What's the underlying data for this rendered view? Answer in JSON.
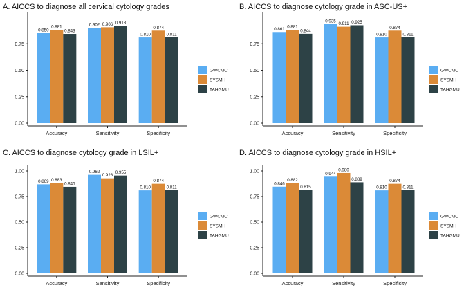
{
  "colors": {
    "GWCMC": "#5AADF2",
    "SYSMH": "#DB8A37",
    "TAHGMU": "#2D4246"
  },
  "chart_data": [
    {
      "type": "bar",
      "title": "A.  AICCS to diagnose all cervical cytology grades",
      "categories": [
        "Accuracy",
        "Sensitivity",
        "Specificity"
      ],
      "ylim": [
        0,
        1.0
      ],
      "yticks": [
        "0.00",
        "0.25",
        "0.50",
        "0.75"
      ],
      "legend": "right",
      "series": [
        {
          "name": "GWCMC",
          "values": [
            0.85,
            0.902,
            0.81
          ],
          "labels": [
            "0.850",
            "0.902",
            "0.810"
          ]
        },
        {
          "name": "SYSMH",
          "values": [
            0.881,
            0.906,
            0.874
          ],
          "labels": [
            "0.881",
            "0.906",
            "0.874"
          ]
        },
        {
          "name": "TAHGMU",
          "values": [
            0.843,
            0.918,
            0.811
          ],
          "labels": [
            "0.843",
            "0.918",
            "0.811"
          ]
        }
      ]
    },
    {
      "type": "bar",
      "title": "B.  AICCS to diagnose cytology grade in ASC-US+",
      "categories": [
        "Accuracy",
        "Sensitivity",
        "Specificity"
      ],
      "ylim": [
        0,
        1.0
      ],
      "yticks": [
        "0.00",
        "0.25",
        "0.50",
        "0.75"
      ],
      "legend": "right",
      "series": [
        {
          "name": "GWCMC",
          "values": [
            0.861,
            0.935,
            0.81
          ],
          "labels": [
            "0.861",
            "0.935",
            "0.810"
          ]
        },
        {
          "name": "SYSMH",
          "values": [
            0.881,
            0.911,
            0.874
          ],
          "labels": [
            "0.881",
            "0.911",
            "0.874"
          ]
        },
        {
          "name": "TAHGMU",
          "values": [
            0.844,
            0.925,
            0.811
          ],
          "labels": [
            "0.844",
            "0.925",
            "0.811"
          ]
        }
      ]
    },
    {
      "type": "bar",
      "title": "C.  AICCS to diagnose cytology grade in LSIL+",
      "categories": [
        "Accuracy",
        "Sensitivity",
        "Specificity"
      ],
      "ylim": [
        0,
        1.0
      ],
      "yticks": [
        "0.00",
        "0.25",
        "0.50",
        "0.75",
        "1.00"
      ],
      "legend": "right",
      "series": [
        {
          "name": "GWCMC",
          "values": [
            0.869,
            0.962,
            0.81
          ],
          "labels": [
            "0.869",
            "0.962",
            "0.810"
          ]
        },
        {
          "name": "SYSMH",
          "values": [
            0.883,
            0.928,
            0.874
          ],
          "labels": [
            "0.883",
            "0.928",
            "0.874"
          ]
        },
        {
          "name": "TAHGMU",
          "values": [
            0.845,
            0.955,
            0.811
          ],
          "labels": [
            "0.845",
            "0.955",
            "0.811"
          ]
        }
      ]
    },
    {
      "type": "bar",
      "title": "D.  AICCS to diagnose cytology grade in HSIL+",
      "categories": [
        "Accuracy",
        "Sensitivity",
        "Specificity"
      ],
      "ylim": [
        0,
        1.0
      ],
      "yticks": [
        "0.00",
        "0.25",
        "0.50",
        "0.75",
        "1.00"
      ],
      "legend": "right",
      "series": [
        {
          "name": "GWCMC",
          "values": [
            0.846,
            0.944,
            0.81
          ],
          "labels": [
            "0.846",
            "0.944",
            "0.810"
          ]
        },
        {
          "name": "SYSMH",
          "values": [
            0.882,
            0.98,
            0.874
          ],
          "labels": [
            "0.882",
            "0.980",
            "0.874"
          ]
        },
        {
          "name": "TAHGMU",
          "values": [
            0.815,
            0.889,
            0.811
          ],
          "labels": [
            "0.815",
            "0.889",
            "0.811"
          ]
        }
      ]
    }
  ]
}
